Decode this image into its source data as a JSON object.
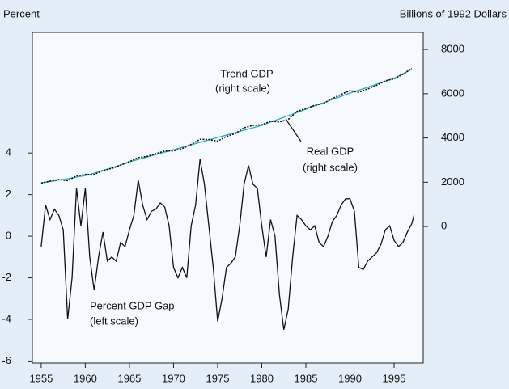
{
  "chart_data": {
    "type": "line",
    "y_label": "Percent",
    "y2_label": "Billions of 1992 Dollars",
    "annotations": [
      "Trend GDP",
      "(right scale)",
      "Real GDP",
      "(right scale)",
      "Percent GDP Gap",
      "(left scale)"
    ],
    "xlim": [
      1954,
      1998.3
    ],
    "xticks": [
      1955,
      1960,
      1965,
      1970,
      1975,
      1980,
      1985,
      1990,
      1995
    ],
    "ylim": [
      -6.1,
      9.8
    ],
    "yticks": [
      -6,
      -4,
      -2,
      0,
      2,
      4
    ],
    "y2lim": [
      -6170,
      8770
    ],
    "y2ticks": [
      0,
      2000,
      4000,
      6000,
      8000
    ],
    "series": [
      {
        "color": "#2aaec6",
        "dash": false,
        "axis": "y2",
        "x": [
          1955,
          1956,
          1957,
          1958,
          1959,
          1960,
          1961,
          1962,
          1963,
          1964,
          1965,
          1966,
          1967,
          1968,
          1969,
          1970,
          1971,
          1972,
          1973,
          1974,
          1975,
          1976,
          1977,
          1978,
          1979,
          1980,
          1981,
          1982,
          1983,
          1984,
          1985,
          1986,
          1987,
          1988,
          1989,
          1990,
          1991,
          1992,
          1993,
          1994,
          1995,
          1996,
          1997
        ],
        "values": [
          1970,
          2030,
          2100,
          2160,
          2230,
          2300,
          2410,
          2530,
          2650,
          2780,
          2920,
          3030,
          3140,
          3250,
          3360,
          3470,
          3580,
          3690,
          3800,
          3910,
          4020,
          4130,
          4240,
          4350,
          4460,
          4570,
          4720,
          4860,
          5010,
          5150,
          5300,
          5450,
          5590,
          5740,
          5880,
          6030,
          6160,
          6290,
          6430,
          6560,
          6690,
          6900,
          7100
        ]
      },
      {
        "color": "#111111",
        "dash": true,
        "axis": "y2",
        "x": [
          1955,
          1956,
          1957,
          1958,
          1959,
          1960,
          1961,
          1962,
          1963,
          1964,
          1965,
          1966,
          1967,
          1968,
          1969,
          1970,
          1971,
          1972,
          1973,
          1974,
          1975,
          1976,
          1977,
          1978,
          1979,
          1980,
          1981,
          1982,
          1983,
          1984,
          1985,
          1986,
          1987,
          1988,
          1989,
          1990,
          1991,
          1992,
          1993,
          1994,
          1995,
          1996,
          1997
        ],
        "values": [
          1960,
          2046,
          2121,
          2074,
          2281,
          2353,
          2347,
          2535,
          2624,
          2772,
          2929,
          3112,
          3165,
          3292,
          3407,
          3418,
          3526,
          3708,
          3941,
          3930,
          3855,
          4068,
          4198,
          4459,
          4572,
          4593,
          4758,
          4724,
          4835,
          5202,
          5327,
          5477,
          5562,
          5780,
          5968,
          6139,
          6068,
          6215,
          6379,
          6580,
          6677,
          6879,
          7143
        ]
      },
      {
        "color": "#111111",
        "dash": false,
        "axis": "y",
        "x": [
          1955,
          1955.5,
          1956,
          1956.5,
          1957,
          1957.5,
          1958,
          1958.5,
          1959,
          1959.5,
          1960,
          1960.5,
          1961,
          1961.5,
          1962,
          1962.5,
          1963,
          1963.5,
          1964,
          1964.5,
          1965,
          1965.5,
          1966,
          1966.5,
          1967,
          1967.5,
          1968,
          1968.5,
          1969,
          1969.5,
          1970,
          1970.5,
          1971,
          1971.5,
          1972,
          1972.5,
          1973,
          1973.5,
          1974,
          1974.5,
          1975,
          1975.5,
          1976,
          1976.5,
          1977,
          1977.5,
          1978,
          1978.5,
          1979,
          1979.5,
          1980,
          1980.5,
          1981,
          1981.5,
          1982,
          1982.5,
          1983,
          1983.5,
          1984,
          1984.5,
          1985,
          1985.5,
          1986,
          1986.5,
          1987,
          1987.5,
          1988,
          1988.5,
          1989,
          1989.5,
          1990,
          1990.5,
          1991,
          1991.5,
          1992,
          1992.5,
          1993,
          1993.5,
          1994,
          1994.5,
          1995,
          1995.5,
          1996,
          1996.5,
          1997,
          1997.25
        ],
        "values": [
          -0.5,
          1.5,
          0.8,
          1.3,
          1.0,
          0.3,
          -4.0,
          -2.0,
          2.3,
          0.5,
          2.3,
          -1.0,
          -2.6,
          -1.0,
          0.2,
          -1.2,
          -1.0,
          -1.2,
          -0.3,
          -0.5,
          0.3,
          1.0,
          2.7,
          1.5,
          0.8,
          1.2,
          1.3,
          1.6,
          1.4,
          0.5,
          -1.5,
          -2.0,
          -1.5,
          -2.0,
          0.5,
          1.5,
          3.7,
          2.5,
          0.5,
          -1.5,
          -4.1,
          -3.0,
          -1.5,
          -1.3,
          -1.0,
          0.5,
          2.5,
          3.4,
          2.5,
          2.3,
          0.5,
          -1.0,
          0.8,
          0,
          -2.8,
          -4.5,
          -3.5,
          -1.0,
          1.0,
          0.8,
          0.5,
          0.3,
          0.5,
          -0.3,
          -0.5,
          0,
          0.7,
          1.0,
          1.5,
          1.8,
          1.8,
          1.2,
          -1.5,
          -1.6,
          -1.2,
          -1.0,
          -0.8,
          -0.4,
          0.3,
          0.5,
          -0.2,
          -0.5,
          -0.3,
          0.2,
          0.6,
          1.0
        ]
      }
    ]
  }
}
